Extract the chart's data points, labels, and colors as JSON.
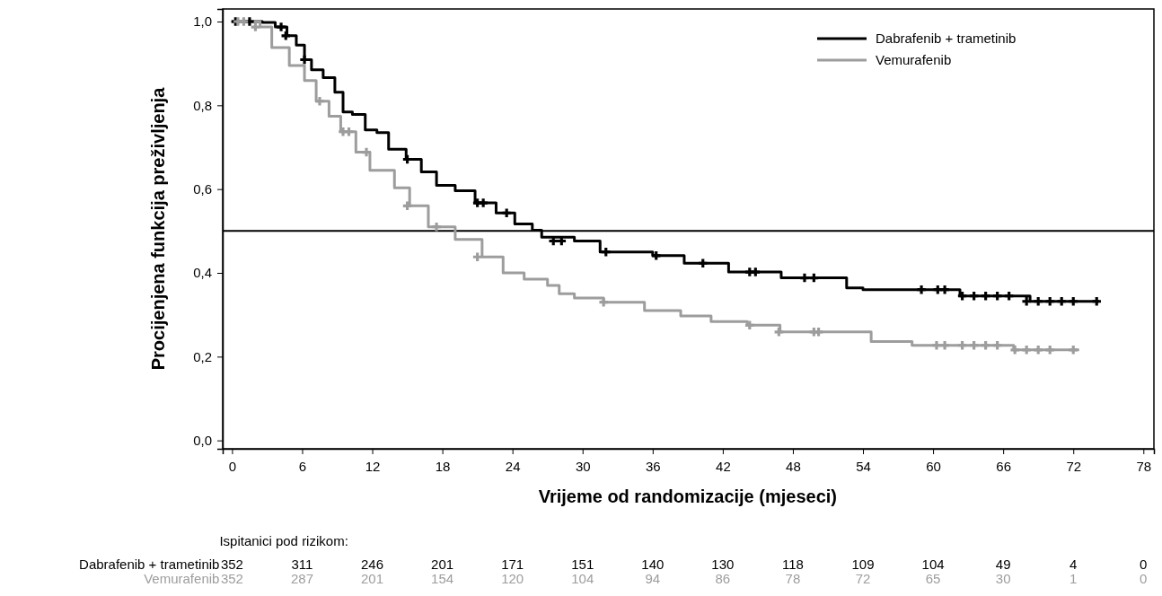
{
  "chart_data": {
    "type": "step",
    "xlabel": "Vrijeme od randomizacije (mjeseci)",
    "ylabel": "Procijenjena funkcija preživljenja",
    "xlim": [
      -0.8,
      78.9
    ],
    "ylim": [
      -0.02,
      1.03
    ],
    "xticks": [
      0,
      6,
      12,
      18,
      24,
      30,
      36,
      42,
      48,
      54,
      60,
      66,
      72,
      78
    ],
    "yticks": [
      {
        "value": 0,
        "label": "0,0"
      },
      {
        "value": 0.2,
        "label": "0,2"
      },
      {
        "value": 0.4,
        "label": "0,4"
      },
      {
        "value": 0.6,
        "label": "0,6"
      },
      {
        "value": 0.8,
        "label": "0,8"
      },
      {
        "value": 1,
        "label": "1,0"
      }
    ],
    "legend": "top right",
    "line_style": "solid",
    "marker": "none",
    "ref_lines": [
      {
        "axis": "y",
        "value": 0.5,
        "color": "#000000"
      }
    ],
    "series": [
      {
        "name": "Dabrafenib + trametinib",
        "color": "#000000",
        "x": [
          0,
          2.6,
          3.7,
          4.7,
          5.5,
          6.2,
          6.8,
          7.8,
          8.8,
          9.5,
          10.3,
          11.4,
          12.4,
          13.4,
          14.9,
          16.2,
          17.5,
          19.1,
          20.8,
          22.6,
          24.2,
          25.7,
          26.5,
          29.3,
          31.5,
          36,
          38.7,
          42.5,
          47,
          52.6,
          54,
          62.3,
          68.3,
          74.2
        ],
        "values": [
          1,
          0.998,
          0.987,
          0.966,
          0.944,
          0.909,
          0.885,
          0.866,
          0.831,
          0.784,
          0.778,
          0.741,
          0.735,
          0.695,
          0.671,
          0.641,
          0.609,
          0.596,
          0.567,
          0.543,
          0.517,
          0.502,
          0.485,
          0.476,
          0.45,
          0.441,
          0.423,
          0.402,
          0.388,
          0.364,
          0.36,
          0.345,
          0.332,
          0.332
        ]
      },
      {
        "name": "Vemurafenib",
        "color": "#9d9d9d",
        "x": [
          0,
          2.4,
          3.4,
          4.9,
          6.2,
          7.2,
          8.3,
          9.3,
          10.6,
          11.8,
          13.9,
          15.2,
          16.8,
          19.1,
          21.4,
          23.2,
          25,
          27,
          28,
          29.3,
          31.8,
          35.3,
          38.4,
          41,
          44.1,
          46.9,
          54.7,
          58.2,
          66.9,
          72.5
        ],
        "values": [
          1,
          0.987,
          0.938,
          0.895,
          0.859,
          0.81,
          0.774,
          0.737,
          0.688,
          0.645,
          0.603,
          0.56,
          0.51,
          0.48,
          0.438,
          0.4,
          0.385,
          0.37,
          0.35,
          0.34,
          0.33,
          0.31,
          0.297,
          0.284,
          0.275,
          0.259,
          0.236,
          0.227,
          0.216,
          0.216
        ]
      },
      {
        "type": "scatter",
        "marker": "cross",
        "color": "#000000",
        "x": [
          0.3,
          1.5,
          4.2,
          4.6,
          6.2,
          15,
          21,
          21.5,
          23.5,
          27.5,
          28.2,
          32,
          36.3,
          40.3,
          44.3,
          44.8,
          49,
          49.8,
          59,
          60.4,
          61,
          62.5,
          63.5,
          64.5,
          65.5,
          66.5,
          68,
          69,
          70,
          71,
          72,
          74
        ],
        "values": [
          1,
          1,
          0.987,
          0.966,
          0.909,
          0.671,
          0.567,
          0.567,
          0.543,
          0.476,
          0.476,
          0.45,
          0.441,
          0.423,
          0.402,
          0.402,
          0.388,
          0.388,
          0.36,
          0.36,
          0.36,
          0.345,
          0.345,
          0.345,
          0.345,
          0.345,
          0.332,
          0.332,
          0.332,
          0.332,
          0.332,
          0.332
        ]
      },
      {
        "type": "scatter",
        "marker": "cross",
        "color": "#9d9d9d",
        "x": [
          0.5,
          1,
          2,
          7.5,
          9.5,
          10,
          11.5,
          15,
          17.5,
          21,
          31.8,
          44.3,
          46.8,
          49.8,
          50.2,
          60.3,
          61,
          62.5,
          63.5,
          64.5,
          65.5,
          67,
          68,
          69,
          70,
          72
        ],
        "values": [
          1,
          1,
          0.987,
          0.81,
          0.737,
          0.737,
          0.688,
          0.56,
          0.51,
          0.438,
          0.33,
          0.275,
          0.259,
          0.259,
          0.259,
          0.227,
          0.227,
          0.227,
          0.227,
          0.227,
          0.227,
          0.216,
          0.216,
          0.216,
          0.216,
          0.216
        ]
      }
    ],
    "annotations": [
      "Ispitanici pod rizikom:",
      "Dabrafenib + trametinib",
      "352 311 246 201 171 151 140 130 118 109 104 49 4 0",
      "Vemurafenib",
      "352 287 201 154 120 104 94 86 78 72 65 30 1 0"
    ]
  }
}
